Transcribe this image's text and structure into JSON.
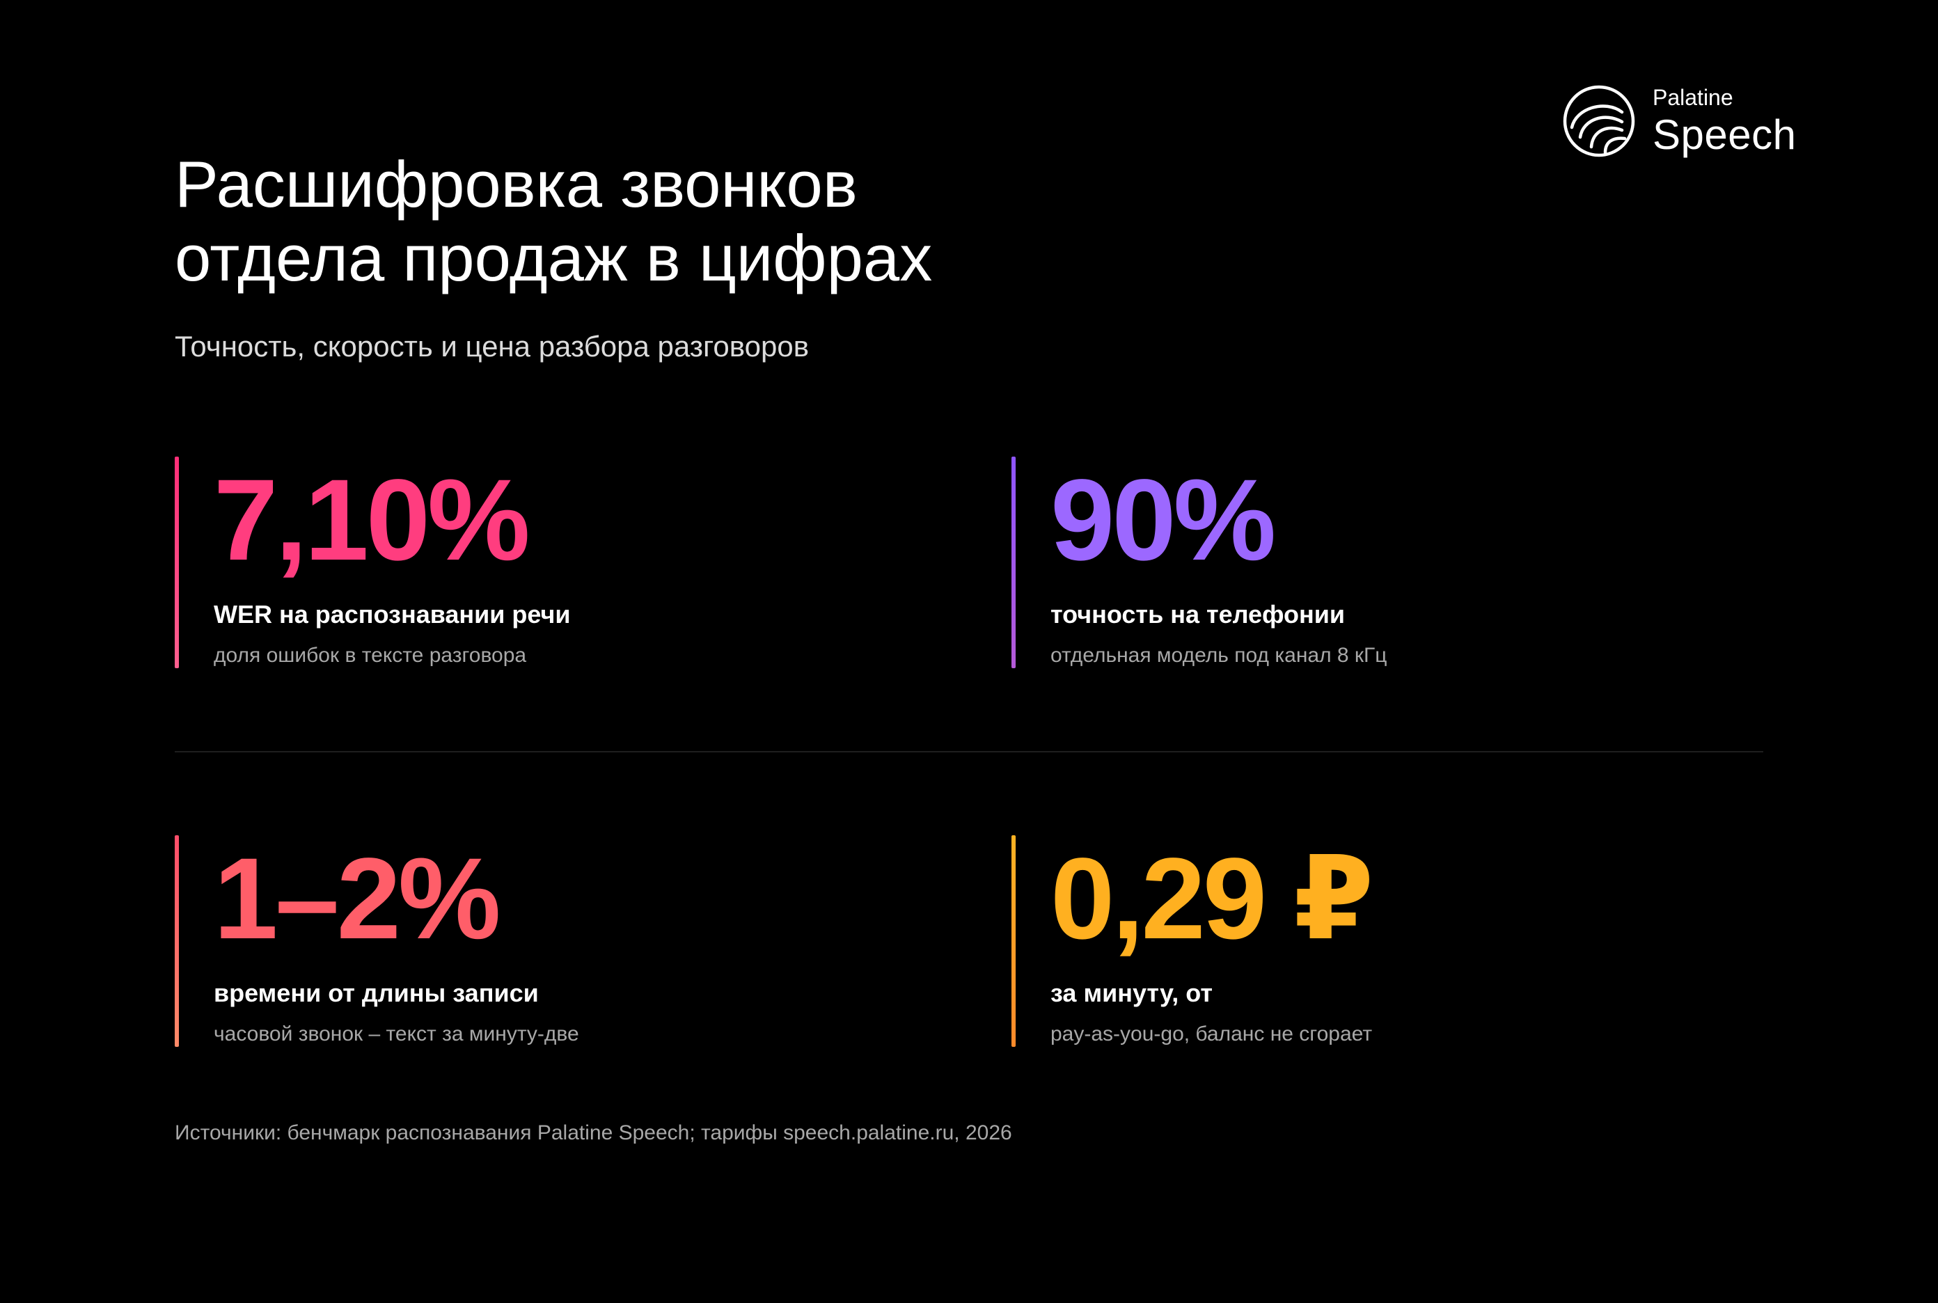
{
  "logo": {
    "small": "Palatine",
    "big": "Speech",
    "icon": "palatine-speech-logo-icon"
  },
  "header": {
    "title": "Расшифровка звонков\nотдела продаж в цифрах",
    "subtitle": "Точность, скорость и цена разбора разговоров"
  },
  "stats": [
    {
      "value": "7,10%",
      "label": "WER на распознавании речи",
      "note": "доля ошибок в тексте разговора",
      "color": "#ff3d7f"
    },
    {
      "value": "90%",
      "label": "точность на телефонии",
      "note": "отдельная модель под канал 8 кГц",
      "color": "#9c68ff"
    },
    {
      "value": "1–2%",
      "label": "времени от длины записи",
      "note": "часовой звонок – текст за минуту-две",
      "color": "#ff5e69"
    },
    {
      "value": "0,29 ₽",
      "label": "за минуту, от",
      "note": "pay-as-you-go, баланс не сгорает",
      "color": "#ffb020"
    }
  ],
  "footer": {
    "sources": "Источники: бенчмарк распознавания Palatine Speech; тарифы speech.palatine.ru, 2026"
  }
}
